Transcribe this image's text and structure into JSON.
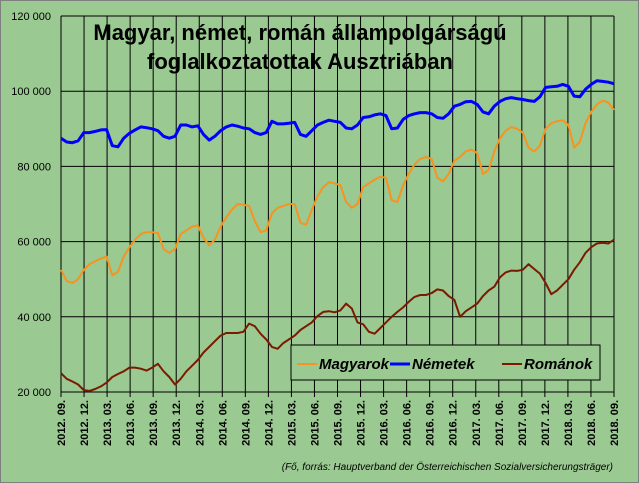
{
  "chart_data": {
    "type": "line",
    "title": "Magyar, német, román állampolgárságú",
    "title_line2": "foglalkoztatottak Ausztriában",
    "source": "(Fő, forrás: Hauptverband der Österreichischen Sozialversicherungsträger)",
    "ylim": [
      20000,
      120000
    ],
    "y_ticks": [
      "20 000",
      "40 000",
      "60 000",
      "80 000",
      "100 000",
      "120 000"
    ],
    "y_tick_values": [
      20000,
      40000,
      60000,
      80000,
      100000,
      120000
    ],
    "x_ticks": [
      "2012. 09.",
      "2012. 12.",
      "2013. 03.",
      "2013. 06.",
      "2013. 09.",
      "2013. 12.",
      "2014. 03.",
      "2014. 06.",
      "2014. 09.",
      "2014. 12.",
      "2015. 03.",
      "2015. 06.",
      "2015. 09.",
      "2015. 12.",
      "2016. 03.",
      "2016. 06.",
      "2016. 09.",
      "2016. 12.",
      "2017. 03.",
      "2017. 06.",
      "2017. 09.",
      "2017. 12.",
      "2018. 03.",
      "2018. 06.",
      "2018. 09."
    ],
    "grid": true,
    "legend_position": "bottom-right",
    "series": [
      {
        "name": "Magyarok",
        "color": "#f7931e",
        "values": [
          52500,
          49500,
          49000,
          50000,
          52500,
          54000,
          54800,
          55500,
          56000,
          51000,
          52000,
          56000,
          58500,
          60500,
          62000,
          62500,
          62500,
          62300,
          58000,
          57000,
          58000,
          62000,
          63000,
          64000,
          64300,
          61000,
          59000,
          60500,
          64000,
          66500,
          68500,
          70000,
          69800,
          69500,
          65500,
          62500,
          63000,
          67500,
          69000,
          69500,
          70000,
          70000,
          65000,
          64500,
          68500,
          72000,
          74500,
          75800,
          75500,
          75000,
          70500,
          69000,
          70000,
          74500,
          75500,
          76500,
          77200,
          77000,
          71000,
          70500,
          75000,
          78000,
          80500,
          82000,
          82500,
          82000,
          77000,
          76000,
          78000,
          81500,
          82500,
          84000,
          84500,
          83500,
          78000,
          79000,
          84000,
          87500,
          89500,
          90500,
          90000,
          89000,
          85000,
          84000,
          85500,
          90000,
          91500,
          92000,
          92300,
          91000,
          85000,
          86500,
          91500,
          94500,
          96500,
          97500,
          97000,
          95000
        ]
      },
      {
        "name": "Németek",
        "color": "#0000ff",
        "values": [
          87500,
          86500,
          86300,
          86800,
          89000,
          89000,
          89300,
          89700,
          89800,
          85500,
          85200,
          87500,
          88800,
          89700,
          90500,
          90300,
          90000,
          89500,
          88000,
          87500,
          88000,
          91000,
          91000,
          90500,
          90800,
          88500,
          87000,
          88000,
          89500,
          90500,
          91000,
          90700,
          90200,
          90000,
          89000,
          88500,
          89000,
          92000,
          91300,
          91300,
          91500,
          91700,
          88500,
          88000,
          89500,
          91000,
          91700,
          92300,
          92000,
          91700,
          90200,
          90000,
          91000,
          93000,
          93200,
          93700,
          94000,
          93500,
          90000,
          90200,
          92500,
          93500,
          94000,
          94300,
          94300,
          94000,
          93000,
          92800,
          94000,
          96000,
          96500,
          97200,
          97300,
          96500,
          94500,
          94000,
          96000,
          97300,
          98000,
          98300,
          98000,
          97800,
          97500,
          97300,
          98500,
          101000,
          101200,
          101300,
          101800,
          101300,
          98700,
          98500,
          100500,
          101800,
          102800,
          102600,
          102400,
          102000
        ]
      },
      {
        "name": "Románok",
        "color": "#7a1a00",
        "values": [
          25000,
          23500,
          22800,
          22000,
          20500,
          20300,
          20800,
          21500,
          22500,
          24000,
          24800,
          25500,
          26500,
          26500,
          26200,
          25700,
          26500,
          27500,
          25500,
          24000,
          22000,
          23500,
          25500,
          27000,
          28500,
          30500,
          32000,
          33500,
          35000,
          35700,
          35700,
          35700,
          36000,
          38200,
          37500,
          35500,
          34000,
          32000,
          31500,
          33000,
          34000,
          35000,
          36500,
          37500,
          38500,
          40200,
          41300,
          41500,
          41200,
          41700,
          43500,
          42200,
          38500,
          38000,
          36000,
          35500,
          37000,
          38500,
          40000,
          41300,
          42500,
          44000,
          45300,
          45800,
          45800,
          46300,
          47300,
          47000,
          45500,
          44500,
          40000,
          41500,
          42500,
          43500,
          45500,
          47000,
          48000,
          50500,
          51800,
          52300,
          52200,
          52500,
          54000,
          52700,
          51500,
          49000,
          46000,
          47000,
          48500,
          50000,
          52500,
          54500,
          57000,
          58500,
          59500,
          59700,
          59500,
          60500
        ]
      }
    ]
  }
}
